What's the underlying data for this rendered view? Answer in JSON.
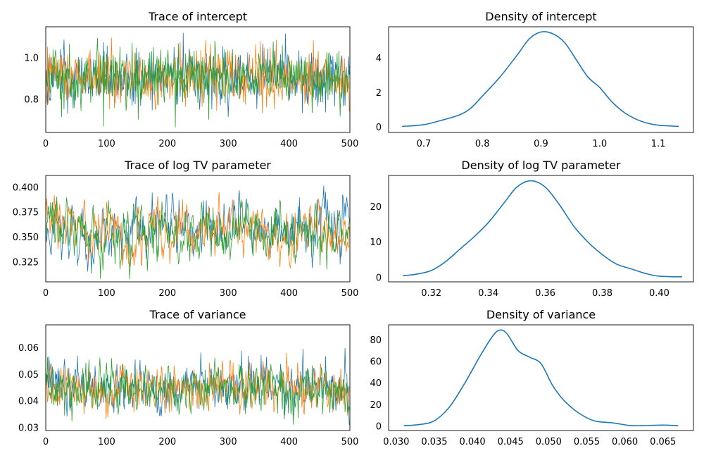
{
  "colors": [
    "#1f77b4",
    "#ff7f0e",
    "#2ca02c"
  ],
  "chart_data": [
    {
      "type": "line",
      "title": "Trace of intercept",
      "xlabel": "",
      "ylabel": "",
      "xlim": [
        0,
        500
      ],
      "ylim": [
        0.64,
        1.15
      ],
      "xticks": [
        0,
        100,
        200,
        300,
        400,
        500
      ],
      "yticks": [
        0.8,
        1.0
      ],
      "ytick_labels": [
        "0.8",
        "1.0"
      ],
      "trace": {
        "n": 500,
        "mean": 0.905,
        "sd": 0.07,
        "ac": 0.0,
        "min": 0.66,
        "max": 1.14
      }
    },
    {
      "type": "line",
      "title": "Density of intercept",
      "xlabel": "",
      "ylabel": "",
      "xlim": [
        0.64,
        1.16
      ],
      "ylim": [
        -0.3,
        5.8
      ],
      "xticks": [
        0.7,
        0.8,
        0.9,
        1.0,
        1.1
      ],
      "xtick_labels": [
        "0.7",
        "0.8",
        "0.9",
        "1.0",
        "1.1"
      ],
      "yticks": [
        0,
        2,
        4
      ],
      "ytick_labels": [
        "0",
        "2",
        "4"
      ],
      "x": [
        0.663,
        0.7,
        0.73,
        0.76,
        0.78,
        0.8,
        0.83,
        0.86,
        0.88,
        0.9,
        0.92,
        0.94,
        0.96,
        0.98,
        1.0,
        1.02,
        1.04,
        1.06,
        1.08,
        1.1,
        1.135
      ],
      "y": [
        0.05,
        0.15,
        0.4,
        0.7,
        1.1,
        1.8,
        2.9,
        4.2,
        5.1,
        5.5,
        5.4,
        4.9,
        3.9,
        2.9,
        2.3,
        1.5,
        0.9,
        0.5,
        0.25,
        0.12,
        0.05
      ]
    },
    {
      "type": "line",
      "title": "Trace of log TV parameter",
      "xlabel": "",
      "ylabel": "",
      "xlim": [
        0,
        500
      ],
      "ylim": [
        0.305,
        0.412
      ],
      "xticks": [
        0,
        100,
        200,
        300,
        400,
        500
      ],
      "yticks": [
        0.325,
        0.35,
        0.375,
        0.4
      ],
      "ytick_labels": [
        "0.325",
        "0.350",
        "0.375",
        "0.400"
      ],
      "trace": {
        "n": 500,
        "mean": 0.356,
        "sd": 0.015,
        "ac": 0.6,
        "min": 0.308,
        "max": 0.409
      }
    },
    {
      "type": "line",
      "title": "Density of log TV parameter",
      "xlabel": "",
      "ylabel": "",
      "xlim": [
        0.305,
        0.412
      ],
      "ylim": [
        -1.2,
        28.8
      ],
      "xticks": [
        0.32,
        0.34,
        0.36,
        0.38,
        0.4
      ],
      "xtick_labels": [
        "0.32",
        "0.34",
        "0.36",
        "0.38",
        "0.40"
      ],
      "yticks": [
        0,
        10,
        20
      ],
      "ytick_labels": [
        "0",
        "10",
        "20"
      ],
      "x": [
        0.31,
        0.315,
        0.32,
        0.325,
        0.33,
        0.335,
        0.34,
        0.345,
        0.35,
        0.355,
        0.36,
        0.365,
        0.37,
        0.375,
        0.38,
        0.385,
        0.39,
        0.395,
        0.4,
        0.408
      ],
      "y": [
        0.5,
        1.0,
        2.0,
        4.5,
        8.0,
        11.5,
        15.5,
        20.5,
        25.5,
        27.3,
        25.5,
        20.5,
        14.5,
        10.0,
        6.5,
        3.8,
        2.5,
        1.2,
        0.4,
        0.2
      ]
    },
    {
      "type": "line",
      "title": "Trace of variance",
      "xlabel": "",
      "ylabel": "",
      "xlim": [
        0,
        500
      ],
      "ylim": [
        0.029,
        0.0685
      ],
      "xticks": [
        0,
        100,
        200,
        300,
        400,
        500
      ],
      "yticks": [
        0.03,
        0.04,
        0.05,
        0.06
      ],
      "ytick_labels": [
        "0.03",
        "0.04",
        "0.05",
        "0.06"
      ],
      "trace": {
        "n": 500,
        "mean": 0.045,
        "sd": 0.0045,
        "ac": 0.3,
        "min": 0.031,
        "max": 0.067
      }
    },
    {
      "type": "line",
      "title": "Density of variance",
      "xlabel": "",
      "ylabel": "",
      "xlim": [
        0.029,
        0.069
      ],
      "ylim": [
        -4,
        94
      ],
      "xticks": [
        0.03,
        0.035,
        0.04,
        0.045,
        0.05,
        0.055,
        0.06,
        0.065
      ],
      "xtick_labels": [
        "0.030",
        "0.035",
        "0.040",
        "0.045",
        "0.050",
        "0.055",
        "0.060",
        "0.065"
      ],
      "yticks": [
        0,
        20,
        40,
        60,
        80
      ],
      "ytick_labels": [
        "0",
        "20",
        "40",
        "60",
        "80"
      ],
      "x": [
        0.031,
        0.033,
        0.035,
        0.037,
        0.039,
        0.041,
        0.0425,
        0.0435,
        0.0445,
        0.046,
        0.0475,
        0.049,
        0.0505,
        0.052,
        0.054,
        0.056,
        0.0585,
        0.0605,
        0.062,
        0.065,
        0.067
      ],
      "y": [
        0.5,
        1.5,
        5,
        18,
        40,
        65,
        82,
        89,
        86,
        70,
        64,
        58,
        38,
        24,
        12,
        5,
        3,
        0.8,
        0.5,
        1,
        0.5
      ]
    }
  ]
}
